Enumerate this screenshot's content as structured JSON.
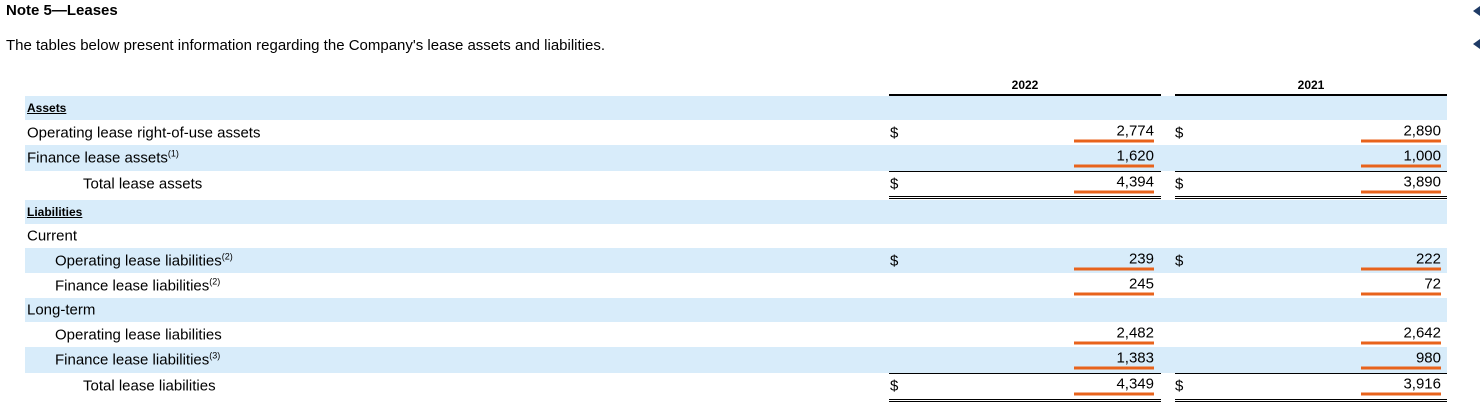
{
  "note": {
    "title": "Note 5—Leases",
    "intro": "The tables below present information regarding the Company's lease assets and liabilities."
  },
  "columns": [
    "2022",
    "2021"
  ],
  "currency_symbol": "$",
  "rows": [
    {
      "label": "Assets",
      "type": "header"
    },
    {
      "label": "Operating lease right-of-use assets",
      "sup": "",
      "v2022": "2,774",
      "v2021": "2,890"
    },
    {
      "label": "Finance lease assets",
      "sup": "(1)",
      "v2022": "1,620",
      "v2021": "1,000"
    },
    {
      "label": "Total lease assets",
      "sup": "",
      "v2022": "4,394",
      "v2021": "3,890"
    },
    {
      "label": "Liabilities",
      "type": "header"
    },
    {
      "label": "Current"
    },
    {
      "label": "Operating lease liabilities",
      "sup": "(2)",
      "v2022": "239",
      "v2021": "222"
    },
    {
      "label": "Finance lease liabilities",
      "sup": "(2)",
      "v2022": "245",
      "v2021": "72"
    },
    {
      "label": "Long-term"
    },
    {
      "label": "Operating lease liabilities",
      "sup": "",
      "v2022": "2,482",
      "v2021": "2,642"
    },
    {
      "label": "Finance lease liabilities",
      "sup": "(3)",
      "v2022": "1,383",
      "v2021": "980"
    },
    {
      "label": "Total lease liabilities",
      "sup": "",
      "v2022": "4,349",
      "v2021": "3,916"
    }
  ]
}
